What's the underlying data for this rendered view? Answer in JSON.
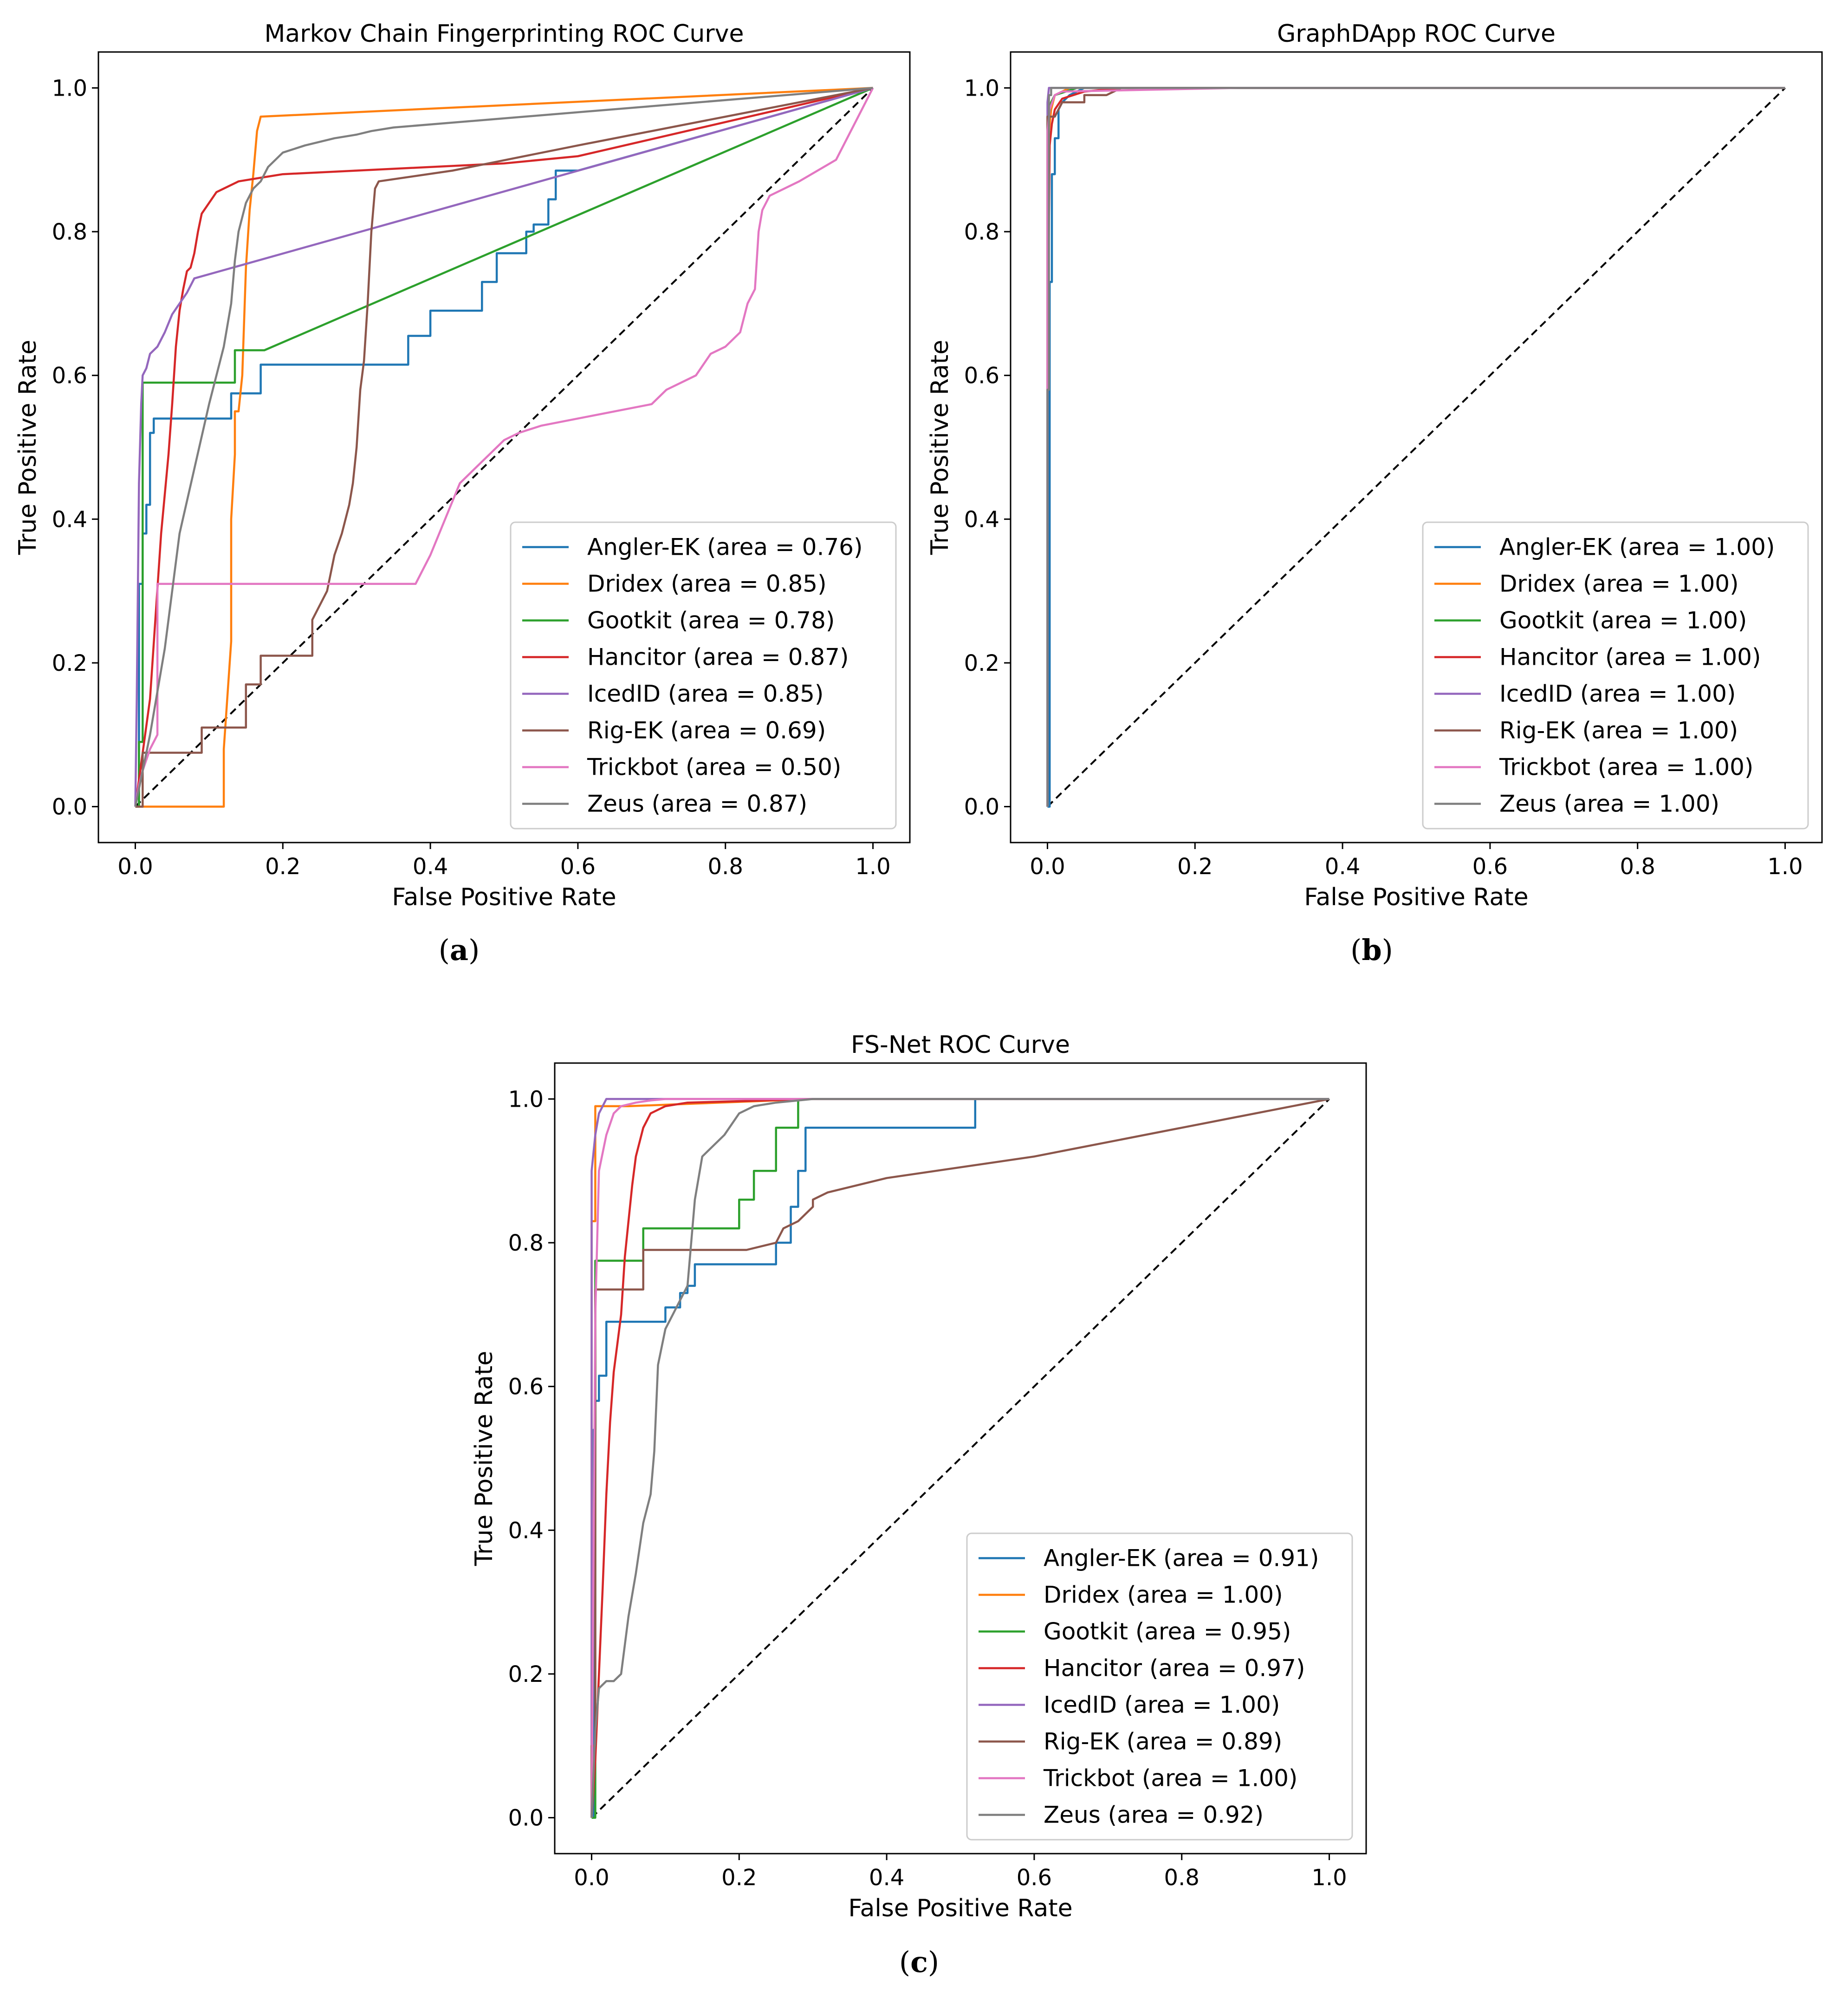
{
  "colors": {
    "Angler-EK": "#1f77b4",
    "Dridex": "#ff7f0e",
    "Gootkit": "#2ca02c",
    "Hancitor": "#d62728",
    "IcedID": "#9467bd",
    "Rig-EK": "#8c564b",
    "Trickbot": "#e377c2",
    "Zeus": "#7f7f7f",
    "diagonal": "#000000"
  },
  "captions": {
    "a": {
      "open": "(",
      "letter": "a",
      "close": ")"
    },
    "b": {
      "open": "(",
      "letter": "b",
      "close": ")"
    },
    "c": {
      "open": "(",
      "letter": "c",
      "close": ")"
    }
  },
  "chart_data": [
    {
      "id": "a",
      "type": "line",
      "title": "Markov Chain Fingerprinting ROC Curve",
      "xlabel": "False Positive Rate",
      "ylabel": "True Positive Rate",
      "xlim": [
        -0.05,
        1.05
      ],
      "ylim": [
        -0.05,
        1.05
      ],
      "xticks": [
        0.0,
        0.2,
        0.4,
        0.6,
        0.8,
        1.0
      ],
      "yticks": [
        0.0,
        0.2,
        0.4,
        0.6,
        0.8,
        1.0
      ],
      "tick_labels": [
        "0.0",
        "0.2",
        "0.4",
        "0.6",
        "0.8",
        "1.0"
      ],
      "legend_position": "lower-right",
      "diagonal": true,
      "series": [
        {
          "name": "Angler-EK",
          "legend": "Angler-EK (area = 0.76)",
          "x": [
            0,
            0.005,
            0.005,
            0.01,
            0.01,
            0.015,
            0.015,
            0.02,
            0.02,
            0.025,
            0.025,
            0.13,
            0.13,
            0.17,
            0.17,
            0.2,
            0.2,
            0.37,
            0.37,
            0.4,
            0.4,
            0.47,
            0.47,
            0.49,
            0.49,
            0.53,
            0.53,
            0.54,
            0.54,
            0.56,
            0.56,
            0.57,
            0.57,
            0.6,
            1.0
          ],
          "y": [
            0,
            0,
            0.31,
            0.31,
            0.38,
            0.38,
            0.42,
            0.42,
            0.52,
            0.52,
            0.54,
            0.54,
            0.575,
            0.575,
            0.615,
            0.615,
            0.615,
            0.615,
            0.655,
            0.655,
            0.69,
            0.69,
            0.73,
            0.73,
            0.77,
            0.77,
            0.8,
            0.8,
            0.81,
            0.81,
            0.845,
            0.845,
            0.885,
            0.885,
            1.0
          ]
        },
        {
          "name": "Dridex",
          "legend": "Dridex (area = 0.85)",
          "x": [
            0,
            0.12,
            0.12,
            0.13,
            0.13,
            0.135,
            0.135,
            0.14,
            0.145,
            0.15,
            0.155,
            0.16,
            0.165,
            0.17,
            1.0
          ],
          "y": [
            0,
            0,
            0.08,
            0.23,
            0.4,
            0.49,
            0.55,
            0.55,
            0.6,
            0.75,
            0.83,
            0.88,
            0.94,
            0.96,
            1.0
          ]
        },
        {
          "name": "Gootkit",
          "legend": "Gootkit (area = 0.78)",
          "x": [
            0,
            0.005,
            0.005,
            0.01,
            0.01,
            0.135,
            0.135,
            0.175,
            1.0
          ],
          "y": [
            0,
            0,
            0.09,
            0.09,
            0.59,
            0.59,
            0.635,
            0.635,
            1.0
          ]
        },
        {
          "name": "Hancitor",
          "legend": "Hancitor (area = 0.87)",
          "x": [
            0,
            0.02,
            0.035,
            0.045,
            0.05,
            0.055,
            0.06,
            0.065,
            0.07,
            0.075,
            0.08,
            0.085,
            0.09,
            0.1,
            0.11,
            0.12,
            0.14,
            0.17,
            0.2,
            0.3,
            0.5,
            0.6,
            1.0
          ],
          "y": [
            0,
            0.15,
            0.38,
            0.49,
            0.56,
            0.64,
            0.69,
            0.72,
            0.745,
            0.75,
            0.77,
            0.8,
            0.825,
            0.84,
            0.855,
            0.86,
            0.87,
            0.875,
            0.88,
            0.885,
            0.895,
            0.905,
            1.0
          ]
        },
        {
          "name": "IcedID",
          "legend": "IcedID (area = 0.85)",
          "x": [
            0,
            0.002,
            0.005,
            0.008,
            0.01,
            0.015,
            0.02,
            0.03,
            0.04,
            0.05,
            0.06,
            0.07,
            0.08,
            1.0
          ],
          "y": [
            0,
            0.15,
            0.45,
            0.56,
            0.6,
            0.61,
            0.63,
            0.64,
            0.66,
            0.685,
            0.7,
            0.715,
            0.735,
            1.0
          ]
        },
        {
          "name": "Rig-EK",
          "legend": "Rig-EK (area = 0.69)",
          "x": [
            0,
            0.01,
            0.01,
            0.09,
            0.09,
            0.15,
            0.15,
            0.17,
            0.17,
            0.24,
            0.24,
            0.26,
            0.27,
            0.28,
            0.29,
            0.295,
            0.3,
            0.305,
            0.31,
            0.315,
            0.32,
            0.325,
            0.33,
            0.43,
            0.6,
            1.0
          ],
          "y": [
            0,
            0,
            0.075,
            0.075,
            0.11,
            0.11,
            0.17,
            0.17,
            0.21,
            0.21,
            0.26,
            0.3,
            0.35,
            0.38,
            0.42,
            0.45,
            0.5,
            0.58,
            0.62,
            0.7,
            0.8,
            0.86,
            0.87,
            0.885,
            0.92,
            1.0
          ]
        },
        {
          "name": "Trickbot",
          "legend": "Trickbot (area = 0.50)",
          "x": [
            0,
            0.005,
            0.01,
            0.02,
            0.03,
            0.03,
            0.38,
            0.4,
            0.42,
            0.44,
            0.46,
            0.48,
            0.5,
            0.52,
            0.55,
            0.6,
            0.7,
            0.72,
            0.74,
            0.76,
            0.78,
            0.8,
            0.82,
            0.83,
            0.84,
            0.845,
            0.85,
            0.86,
            0.9,
            0.95,
            1.0
          ],
          "y": [
            0,
            0.03,
            0.05,
            0.08,
            0.1,
            0.31,
            0.31,
            0.35,
            0.4,
            0.45,
            0.47,
            0.49,
            0.51,
            0.52,
            0.53,
            0.54,
            0.56,
            0.58,
            0.59,
            0.6,
            0.63,
            0.64,
            0.66,
            0.7,
            0.72,
            0.8,
            0.83,
            0.85,
            0.87,
            0.9,
            1.0
          ]
        },
        {
          "name": "Zeus",
          "legend": "Zeus (area = 0.87)",
          "x": [
            0,
            0.02,
            0.04,
            0.06,
            0.08,
            0.1,
            0.12,
            0.13,
            0.135,
            0.14,
            0.15,
            0.16,
            0.17,
            0.18,
            0.2,
            0.23,
            0.27,
            0.3,
            0.32,
            0.35,
            1.0
          ],
          "y": [
            0,
            0.1,
            0.22,
            0.38,
            0.47,
            0.56,
            0.64,
            0.7,
            0.76,
            0.8,
            0.84,
            0.86,
            0.87,
            0.89,
            0.91,
            0.92,
            0.93,
            0.935,
            0.94,
            0.945,
            1.0
          ]
        }
      ]
    },
    {
      "id": "b",
      "type": "line",
      "title": "GraphDApp ROC Curve",
      "xlabel": "False Positive Rate",
      "ylabel": "True Positive Rate",
      "xlim": [
        -0.05,
        1.05
      ],
      "ylim": [
        -0.05,
        1.05
      ],
      "xticks": [
        0.0,
        0.2,
        0.4,
        0.6,
        0.8,
        1.0
      ],
      "yticks": [
        0.0,
        0.2,
        0.4,
        0.6,
        0.8,
        1.0
      ],
      "tick_labels": [
        "0.0",
        "0.2",
        "0.4",
        "0.6",
        "0.8",
        "1.0"
      ],
      "legend_position": "lower-right",
      "diagonal": true,
      "series": [
        {
          "name": "Angler-EK",
          "legend": "Angler-EK (area = 1.00)",
          "x": [
            0,
            0.003,
            0.003,
            0.006,
            0.006,
            0.01,
            0.01,
            0.015,
            0.015,
            0.02,
            0.03,
            0.05,
            1.0
          ],
          "y": [
            0,
            0,
            0.73,
            0.73,
            0.88,
            0.88,
            0.93,
            0.93,
            0.97,
            0.98,
            0.99,
            1.0,
            1.0
          ]
        },
        {
          "name": "Dridex",
          "legend": "Dridex (area = 1.00)",
          "x": [
            0,
            0,
            0.005,
            0.01,
            0.03,
            1.0
          ],
          "y": [
            0,
            0.92,
            0.97,
            0.99,
            1.0,
            1.0
          ]
        },
        {
          "name": "Gootkit",
          "legend": "Gootkit (area = 1.00)",
          "x": [
            0,
            0,
            0.005,
            0.01,
            0.04,
            1.0
          ],
          "y": [
            0,
            0.95,
            0.98,
            0.99,
            1.0,
            1.0
          ]
        },
        {
          "name": "Hancitor",
          "legend": "Hancitor (area = 1.00)",
          "x": [
            0,
            0,
            0.003,
            0.006,
            0.01,
            0.02,
            0.05,
            0.1,
            1.0
          ],
          "y": [
            0,
            0.6,
            0.92,
            0.95,
            0.97,
            0.985,
            0.995,
            1.0,
            1.0
          ]
        },
        {
          "name": "IcedID",
          "legend": "IcedID (area = 1.00)",
          "x": [
            0,
            0,
            0.002,
            1.0
          ],
          "y": [
            0,
            0.98,
            1.0,
            1.0
          ]
        },
        {
          "name": "Rig-EK",
          "legend": "Rig-EK (area = 1.00)",
          "x": [
            0,
            0,
            0.01,
            0.02,
            0.03,
            0.05,
            0.05,
            0.08,
            0.1,
            1.0
          ],
          "y": [
            0,
            0.96,
            0.96,
            0.98,
            0.98,
            0.98,
            0.99,
            0.99,
            1.0,
            1.0
          ]
        },
        {
          "name": "Trickbot",
          "legend": "Trickbot (area = 1.00)",
          "x": [
            0,
            0,
            0.003,
            0.01,
            0.02,
            0.26,
            1.0
          ],
          "y": [
            0,
            0.94,
            0.97,
            0.99,
            0.995,
            1.0,
            1.0
          ]
        },
        {
          "name": "Zeus",
          "legend": "Zeus (area = 1.00)",
          "x": [
            0,
            0,
            0.002,
            0.002,
            0.005,
            0.005,
            1.0
          ],
          "y": [
            0,
            0.58,
            0.58,
            0.99,
            0.99,
            1.0,
            1.0
          ]
        }
      ]
    },
    {
      "id": "c",
      "type": "line",
      "title": "FS-Net ROC Curve",
      "xlabel": "False Positive Rate",
      "ylabel": "True Positive Rate",
      "xlim": [
        -0.05,
        1.05
      ],
      "ylim": [
        -0.05,
        1.05
      ],
      "xticks": [
        0.0,
        0.2,
        0.4,
        0.6,
        0.8,
        1.0
      ],
      "yticks": [
        0.0,
        0.2,
        0.4,
        0.6,
        0.8,
        1.0
      ],
      "tick_labels": [
        "0.0",
        "0.2",
        "0.4",
        "0.6",
        "0.8",
        "1.0"
      ],
      "legend_position": "lower-right",
      "diagonal": true,
      "series": [
        {
          "name": "Angler-EK",
          "legend": "Angler-EK (area = 0.91)",
          "x": [
            0,
            0.003,
            0.003,
            0.005,
            0.005,
            0.01,
            0.01,
            0.02,
            0.02,
            0.1,
            0.1,
            0.12,
            0.12,
            0.13,
            0.13,
            0.14,
            0.14,
            0.25,
            0.25,
            0.27,
            0.27,
            0.28,
            0.28,
            0.29,
            0.29,
            0.52,
            0.52,
            1.0
          ],
          "y": [
            0,
            0,
            0.54,
            0.54,
            0.58,
            0.58,
            0.615,
            0.615,
            0.69,
            0.69,
            0.71,
            0.71,
            0.73,
            0.73,
            0.74,
            0.74,
            0.77,
            0.77,
            0.8,
            0.8,
            0.85,
            0.85,
            0.9,
            0.9,
            0.96,
            0.96,
            1.0,
            1.0
          ]
        },
        {
          "name": "Dridex",
          "legend": "Dridex (area = 1.00)",
          "x": [
            0,
            0,
            0.005,
            0.005,
            0.03,
            0.05,
            0.3,
            1.0
          ],
          "y": [
            0,
            0.83,
            0.83,
            0.99,
            0.99,
            0.99,
            1.0,
            1.0
          ]
        },
        {
          "name": "Gootkit",
          "legend": "Gootkit (area = 0.95)",
          "x": [
            0,
            0.005,
            0.005,
            0.07,
            0.07,
            0.2,
            0.2,
            0.22,
            0.22,
            0.25,
            0.25,
            0.28,
            0.28,
            1.0
          ],
          "y": [
            0,
            0,
            0.775,
            0.775,
            0.82,
            0.82,
            0.86,
            0.86,
            0.9,
            0.9,
            0.96,
            0.96,
            1.0,
            1.0
          ]
        },
        {
          "name": "Hancitor",
          "legend": "Hancitor (area = 0.97)",
          "x": [
            0,
            0.005,
            0.01,
            0.015,
            0.02,
            0.025,
            0.03,
            0.035,
            0.04,
            0.045,
            0.05,
            0.055,
            0.06,
            0.07,
            0.08,
            0.1,
            0.13,
            0.2,
            0.3,
            0.7
          ],
          "y": [
            0,
            0.08,
            0.2,
            0.32,
            0.45,
            0.55,
            0.62,
            0.66,
            0.7,
            0.78,
            0.83,
            0.88,
            0.92,
            0.96,
            0.98,
            0.99,
            0.995,
            0.997,
            1.0,
            1.0
          ]
        },
        {
          "name": "IcedID",
          "legend": "IcedID (area = 1.00)",
          "x": [
            0,
            0,
            0.005,
            0.01,
            0.015,
            0.02,
            0.07,
            1.0
          ],
          "y": [
            0,
            0.9,
            0.95,
            0.98,
            0.99,
            1.0,
            1.0,
            1.0
          ]
        },
        {
          "name": "Rig-EK",
          "legend": "Rig-EK (area = 0.89)",
          "x": [
            0,
            0.0,
            0.005,
            0.005,
            0.07,
            0.07,
            0.21,
            0.21,
            0.25,
            0.25,
            0.26,
            0.26,
            0.28,
            0.28,
            0.3,
            0.3,
            0.32,
            0.4,
            0.6,
            0.8,
            1.0
          ],
          "y": [
            0,
            0.1,
            0.1,
            0.735,
            0.735,
            0.79,
            0.79,
            0.79,
            0.8,
            0.8,
            0.82,
            0.82,
            0.83,
            0.83,
            0.85,
            0.86,
            0.87,
            0.89,
            0.92,
            0.96,
            1.0
          ]
        },
        {
          "name": "Trickbot",
          "legend": "Trickbot (area = 1.00)",
          "x": [
            0,
            0.005,
            0.01,
            0.02,
            0.03,
            0.04,
            0.06,
            0.08,
            0.1,
            0.3,
            1.0
          ],
          "y": [
            0,
            0.7,
            0.9,
            0.95,
            0.98,
            0.99,
            0.995,
            0.998,
            1.0,
            1.0,
            1.0
          ]
        },
        {
          "name": "Zeus",
          "legend": "Zeus (area = 0.92)",
          "x": [
            0,
            0.005,
            0.01,
            0.02,
            0.03,
            0.04,
            0.05,
            0.06,
            0.07,
            0.08,
            0.085,
            0.09,
            0.1,
            0.11,
            0.12,
            0.13,
            0.14,
            0.15,
            0.18,
            0.2,
            0.22,
            0.25,
            0.3,
            0.35,
            1.0
          ],
          "y": [
            0,
            0.12,
            0.18,
            0.19,
            0.19,
            0.2,
            0.28,
            0.34,
            0.41,
            0.45,
            0.51,
            0.63,
            0.68,
            0.7,
            0.72,
            0.74,
            0.86,
            0.92,
            0.95,
            0.98,
            0.99,
            0.995,
            1.0,
            1.0,
            1.0
          ]
        }
      ]
    }
  ]
}
